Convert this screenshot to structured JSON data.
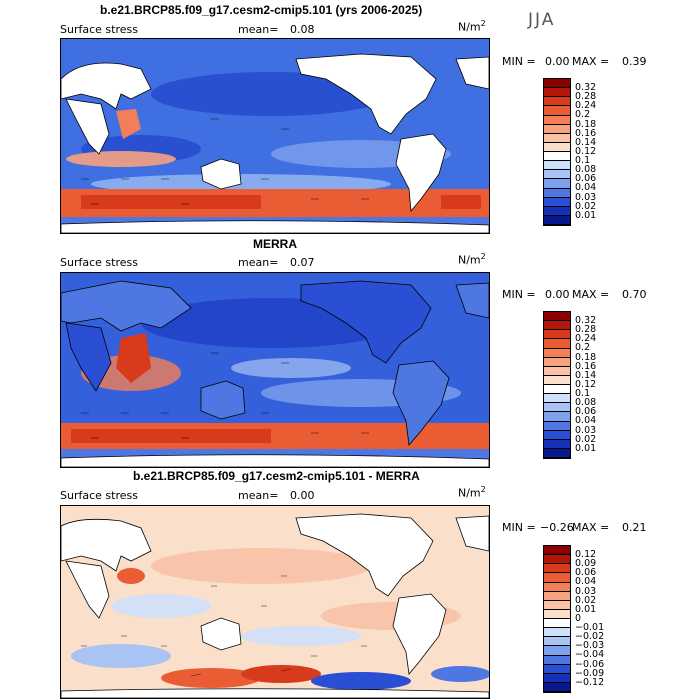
{
  "season": "JJA",
  "panels": [
    {
      "title": "b.e21.BRCP85.f09_g17.cesm2-cmip5.101 (yrs 2006-2025)",
      "variable": "Surface stress",
      "mean_label": "mean=",
      "mean_value": "0.08",
      "units": "N/m",
      "units_exp": "2",
      "min_label": "MIN =",
      "min_value": "0.00",
      "max_label": "MAX =",
      "max_value": "0.39",
      "levels": [
        "0.32",
        "0.28",
        "0.24",
        "0.2",
        "0.18",
        "0.16",
        "0.14",
        "0.12",
        "0.1",
        "0.08",
        "0.06",
        "0.04",
        "0.03",
        "0.02",
        "0.01"
      ],
      "colors": [
        "#8b0000",
        "#b3170a",
        "#d83a1c",
        "#ea5c34",
        "#f37f58",
        "#f7a27f",
        "#f8c2a6",
        "#fadfcb",
        "#ffffff",
        "#cfe0fb",
        "#a8c3f4",
        "#7da1ec",
        "#4f77e2",
        "#2a4fd4",
        "#1630b8",
        "#0a1890"
      ]
    },
    {
      "title": "MERRA",
      "variable": "Surface stress",
      "mean_label": "mean=",
      "mean_value": "0.07",
      "units": "N/m",
      "units_exp": "2",
      "min_label": "MIN =",
      "min_value": "0.00",
      "max_label": "MAX =",
      "max_value": "0.70",
      "levels": [
        "0.32",
        "0.28",
        "0.24",
        "0.2",
        "0.18",
        "0.16",
        "0.14",
        "0.12",
        "0.1",
        "0.08",
        "0.06",
        "0.04",
        "0.03",
        "0.02",
        "0.01"
      ],
      "colors": [
        "#8b0000",
        "#b3170a",
        "#d83a1c",
        "#ea5c34",
        "#f37f58",
        "#f7a27f",
        "#f8c2a6",
        "#fadfcb",
        "#ffffff",
        "#cfe0fb",
        "#a8c3f4",
        "#7da1ec",
        "#4f77e2",
        "#2a4fd4",
        "#1630b8",
        "#0a1890"
      ]
    },
    {
      "title": "b.e21.BRCP85.f09_g17.cesm2-cmip5.101 - MERRA",
      "variable": "Surface stress",
      "mean_label": "mean=",
      "mean_value": "0.00",
      "units": "N/m",
      "units_exp": "2",
      "min_label": "MIN =",
      "min_value": "−0.26",
      "max_label": "MAX =",
      "max_value": "0.21",
      "levels": [
        "0.12",
        "0.09",
        "0.06",
        "0.04",
        "0.03",
        "0.02",
        "0.01",
        "0",
        "−0.01",
        "−0.02",
        "−0.03",
        "−0.04",
        "−0.06",
        "−0.09",
        "−0.12"
      ],
      "colors": [
        "#8b0000",
        "#b3170a",
        "#d83a1c",
        "#ea5c34",
        "#f37f58",
        "#f7a27f",
        "#f8c2a6",
        "#fadfcb",
        "#ffffff",
        "#cfe0fb",
        "#a8c3f4",
        "#7da1ec",
        "#4f77e2",
        "#2a4fd4",
        "#1630b8",
        "#0a1890"
      ]
    }
  ]
}
